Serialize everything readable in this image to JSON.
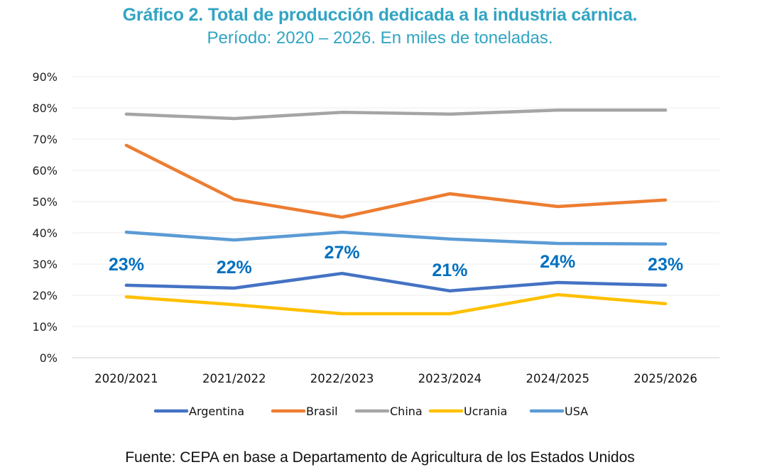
{
  "chart_data": {
    "type": "line",
    "title": "Gráfico 2. Total de producción dedicada a la industria cárnica.",
    "subtitle": "Período: 2020 – 2026. En miles de toneladas.",
    "xlabel": "",
    "ylabel": "",
    "categories": [
      "2020/2021",
      "2021/2022",
      "2022/2023",
      "2023/2024",
      "2024/2025",
      "2025/2026"
    ],
    "ylim": [
      0,
      90
    ],
    "yticks": [
      0,
      10,
      20,
      30,
      40,
      50,
      60,
      70,
      80,
      90
    ],
    "ytick_labels": [
      "0%",
      "10%",
      "20%",
      "30%",
      "40%",
      "50%",
      "60%",
      "70%",
      "80%",
      "90%"
    ],
    "grid": true,
    "legend_position": "bottom",
    "series": [
      {
        "name": "Argentina",
        "color": "#4472C4",
        "values": [
          23.2,
          22.3,
          27.0,
          21.4,
          24.1,
          23.2
        ]
      },
      {
        "name": "Brasil",
        "color": "#ED7D31",
        "values": [
          68.0,
          50.7,
          45.0,
          52.5,
          48.4,
          50.5
        ]
      },
      {
        "name": "China",
        "color": "#A5A5A5",
        "values": [
          78.0,
          76.6,
          78.6,
          78.0,
          79.3,
          79.3
        ]
      },
      {
        "name": "Ucrania",
        "color": "#FFC000",
        "values": [
          19.5,
          17.0,
          14.1,
          14.1,
          20.2,
          17.3
        ]
      },
      {
        "name": "USA",
        "color": "#5B9BD5",
        "values": [
          40.2,
          37.7,
          40.2,
          38.0,
          36.6,
          36.4
        ]
      }
    ],
    "data_labels": {
      "series": "Argentina",
      "color": "#0070C0",
      "labels": [
        "23%",
        "22%",
        "27%",
        "21%",
        "24%",
        "23%"
      ]
    },
    "source": "Fuente: CEPA en base a Departamento de Agricultura de los Estados Unidos"
  }
}
